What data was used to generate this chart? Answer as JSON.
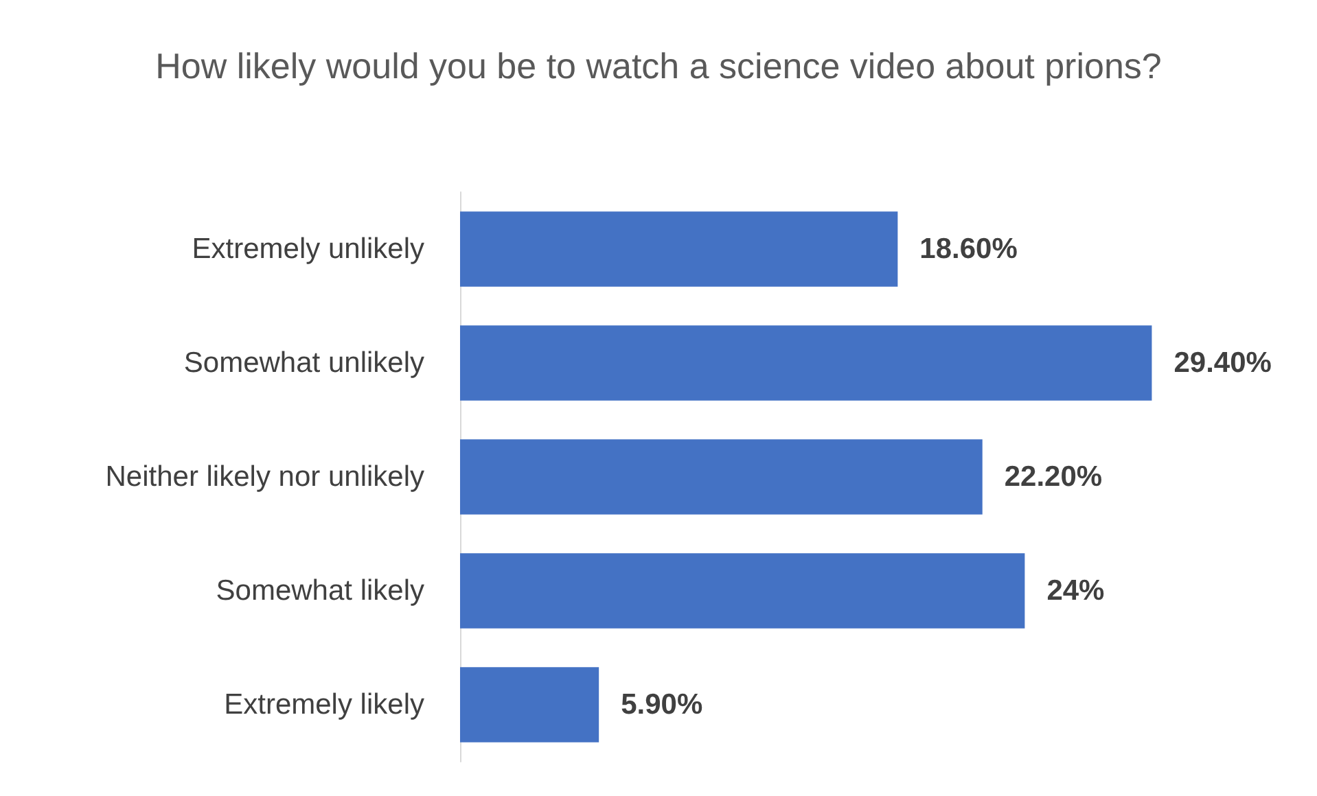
{
  "chart_data": {
    "type": "bar",
    "orientation": "horizontal",
    "title": "How likely would you be to watch a science video about prions?",
    "categories": [
      "Extremely unlikely",
      "Somewhat unlikely",
      "Neither likely nor unlikely",
      "Somewhat likely",
      "Extremely likely"
    ],
    "values": [
      18.6,
      29.4,
      22.2,
      24,
      5.9
    ],
    "value_labels": [
      "18.60%",
      "29.40%",
      "22.20%",
      "24%",
      "5.90%"
    ],
    "color": "#4472c4"
  }
}
